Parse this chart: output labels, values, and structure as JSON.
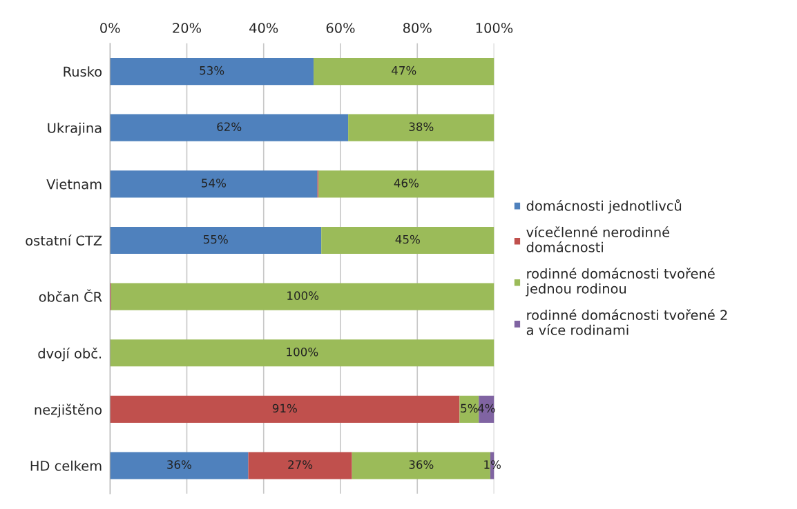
{
  "chart_data": {
    "type": "bar",
    "orientation": "horizontal",
    "stacked": true,
    "categories": [
      "Rusko",
      "Ukrajina",
      "Vietnam",
      "ostatní CTZ",
      "občan ČR",
      "dvojí obč.",
      "nezjištěno",
      "HD celkem"
    ],
    "series": [
      {
        "name": "domácnosti jednotlivců",
        "color": "#4f81bd",
        "values": [
          53,
          62,
          54,
          55,
          0,
          0,
          0,
          36
        ],
        "value_labels": [
          "53%",
          "62%",
          "54%",
          "55%",
          null,
          null,
          null,
          "36%"
        ]
      },
      {
        "name": "vícečlenné nerodinné domácnosti",
        "color": "#c0504d",
        "values": [
          0,
          0,
          0.3,
          0,
          0.3,
          0,
          91,
          27
        ],
        "value_labels": [
          null,
          null,
          null,
          null,
          null,
          null,
          "91%",
          "27%"
        ]
      },
      {
        "name": "rodinné domácnosti tvořené jednou rodinou",
        "color": "#9bbb59",
        "values": [
          47,
          38,
          45.7,
          45,
          99.7,
          100,
          5,
          36
        ],
        "value_labels": [
          "47%",
          "38%",
          "46%",
          "45%",
          "100%",
          "100%",
          "5%",
          "36%"
        ]
      },
      {
        "name": "rodinné domácnosti tvořené 2 a více rodinami",
        "color": "#8064a2",
        "values": [
          0,
          0,
          0,
          0,
          0,
          0,
          4,
          1
        ],
        "value_labels": [
          null,
          null,
          null,
          null,
          null,
          null,
          "4%",
          "1%"
        ]
      }
    ],
    "xlim": [
      0,
      100
    ],
    "xticks": [
      {
        "value": 0,
        "label": "0%"
      },
      {
        "value": 20,
        "label": "20%"
      },
      {
        "value": 40,
        "label": "40%"
      },
      {
        "value": 60,
        "label": "60%"
      },
      {
        "value": 80,
        "label": "80%"
      },
      {
        "value": 100,
        "label": "100%"
      }
    ],
    "grid": "x",
    "legend": "right"
  }
}
